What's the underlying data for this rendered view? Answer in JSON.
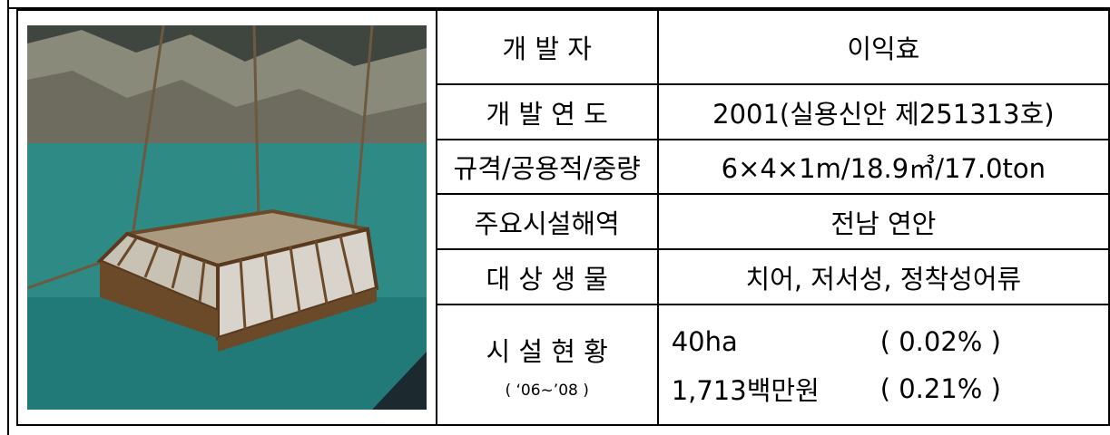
{
  "table": {
    "rows": [
      {
        "label": "개 발 자",
        "value": "이익효"
      },
      {
        "label": "개 발 연 도",
        "value": "2001(실용신안 제251313호)"
      },
      {
        "label": "규격/공용적/중량",
        "value": "6×4×1m/18.9㎥/17.0ton"
      },
      {
        "label": "주요시설해역",
        "value": "전남 연안"
      },
      {
        "label": "대 상 생 물",
        "value": "치어, 저서성, 정착성어류"
      },
      {
        "label": "시 설 현 황",
        "sublabel": "( ‘06~’08 )",
        "values": [
          [
            "40ha",
            "( 0.02% )"
          ],
          [
            "1,713백만원",
            "( 0.21% )"
          ]
        ]
      }
    ]
  }
}
